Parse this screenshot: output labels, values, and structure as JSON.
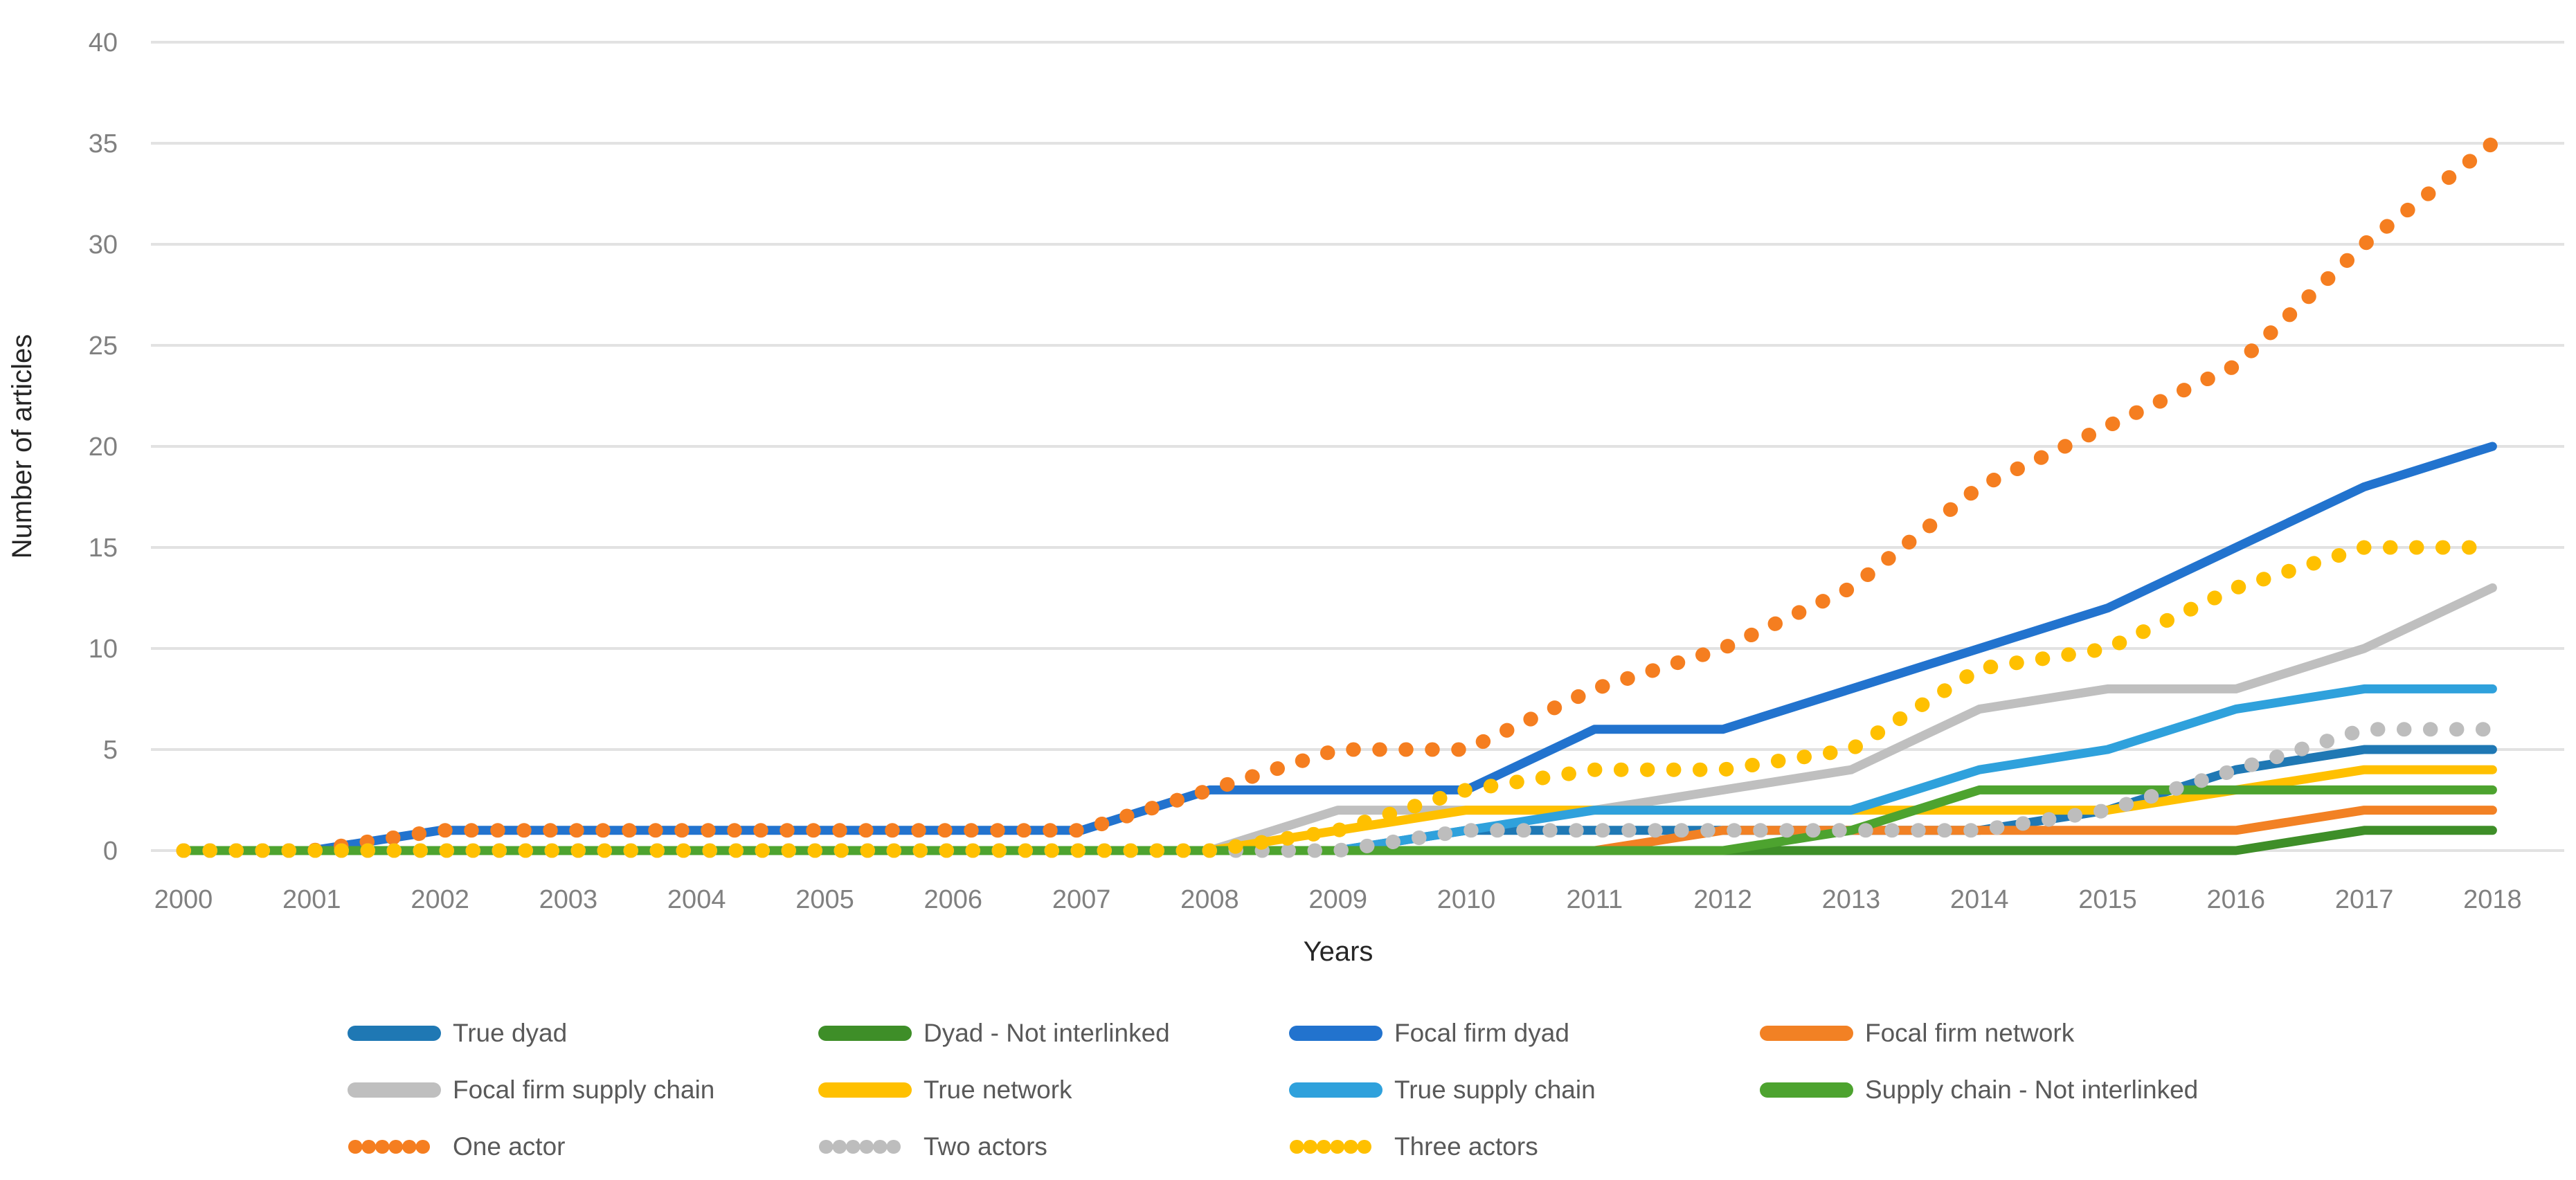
{
  "axes": {
    "ylabel": "Number of articles",
    "xlabel": "Years",
    "ytick_color": "#808080",
    "xtick_color": "#808080",
    "axis_title_color": "#262626",
    "gridline_color": "#E2E2E2",
    "legend_text_color": "#595959"
  },
  "chart_data": {
    "type": "line",
    "title": "",
    "xlabel": "Years",
    "ylabel": "Number of articles",
    "x": [
      2000,
      2001,
      2002,
      2003,
      2004,
      2005,
      2006,
      2007,
      2008,
      2009,
      2010,
      2011,
      2012,
      2013,
      2014,
      2015,
      2016,
      2017,
      2018
    ],
    "ylim": [
      0,
      40
    ],
    "yticks": [
      0,
      5,
      10,
      15,
      20,
      25,
      30,
      35,
      40
    ],
    "grid": "horizontal",
    "legend_position": "bottom",
    "legend_columns": 4,
    "series": [
      {
        "name": "True dyad",
        "color": "#1F78B4",
        "style": "solid",
        "values": [
          0,
          0,
          0,
          0,
          0,
          0,
          0,
          0,
          0,
          0,
          1,
          1,
          1,
          1,
          1,
          2,
          4,
          5,
          5
        ]
      },
      {
        "name": "Dyad - Not interlinked",
        "color": "#3E8E28",
        "style": "solid",
        "values": [
          0,
          0,
          0,
          0,
          0,
          0,
          0,
          0,
          0,
          0,
          0,
          0,
          0,
          0,
          0,
          0,
          0,
          1,
          1
        ]
      },
      {
        "name": "Focal firm dyad",
        "color": "#2273CE",
        "style": "solid",
        "values": [
          0,
          0,
          1,
          1,
          1,
          1,
          1,
          1,
          3,
          3,
          3,
          6,
          6,
          8,
          10,
          12,
          15,
          18,
          20
        ]
      },
      {
        "name": "Focal firm network",
        "color": "#F28124",
        "style": "solid",
        "values": [
          0,
          0,
          0,
          0,
          0,
          0,
          0,
          0,
          0,
          0,
          0,
          0,
          1,
          1,
          1,
          1,
          1,
          2,
          2
        ]
      },
      {
        "name": "Focal firm supply chain",
        "color": "#BFBFBF",
        "style": "solid",
        "values": [
          0,
          0,
          0,
          0,
          0,
          0,
          0,
          0,
          0,
          2,
          2,
          2,
          3,
          4,
          7,
          8,
          8,
          10,
          13
        ]
      },
      {
        "name": "True network",
        "color": "#FFC000",
        "style": "solid",
        "values": [
          0,
          0,
          0,
          0,
          0,
          0,
          0,
          0,
          0,
          1,
          2,
          2,
          2,
          2,
          2,
          2,
          3,
          4,
          4
        ]
      },
      {
        "name": "True supply chain",
        "color": "#2FA1DC",
        "style": "solid",
        "values": [
          0,
          0,
          0,
          0,
          0,
          0,
          0,
          0,
          0,
          0,
          1,
          2,
          2,
          2,
          4,
          5,
          7,
          8,
          8
        ]
      },
      {
        "name": "Supply chain - Not interlinked",
        "color": "#4DA32F",
        "style": "solid",
        "values": [
          0,
          0,
          0,
          0,
          0,
          0,
          0,
          0,
          0,
          0,
          0,
          0,
          0,
          1,
          3,
          3,
          3,
          3,
          3
        ]
      },
      {
        "name": "One actor",
        "color": "#F57E20",
        "style": "dotted",
        "values": [
          0,
          0,
          1,
          1,
          1,
          1,
          1,
          1,
          3,
          5,
          5,
          8,
          10,
          13,
          18,
          21,
          24,
          30,
          35
        ]
      },
      {
        "name": "Two actors",
        "color": "#BDBDBD",
        "style": "dotted",
        "values": [
          0,
          0,
          0,
          0,
          0,
          0,
          0,
          0,
          0,
          0,
          1,
          1,
          1,
          1,
          1,
          2,
          4,
          6,
          6
        ]
      },
      {
        "name": "Three actors",
        "color": "#FFC000",
        "style": "dotted",
        "values": [
          0,
          0,
          0,
          0,
          0,
          0,
          0,
          0,
          0,
          1,
          3,
          4,
          4,
          5,
          9,
          10,
          13,
          15,
          15
        ]
      }
    ]
  }
}
